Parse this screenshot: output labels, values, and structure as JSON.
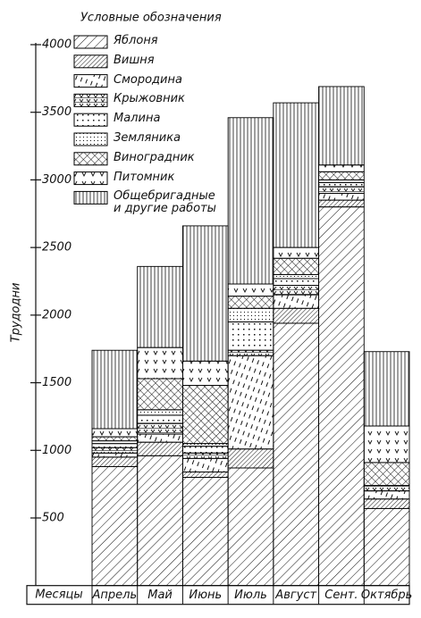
{
  "chart_data": {
    "type": "bar",
    "stacked": true,
    "legend_title": "Условные обозначения",
    "y_label": "Трудодни",
    "x_label": "Месяцы",
    "categories": [
      "Апрель",
      "Май",
      "Июнь",
      "Июль",
      "Август",
      "Сент.",
      "Октябрь"
    ],
    "ylim": [
      0,
      4000
    ],
    "yticks": [
      500,
      1000,
      1500,
      2000,
      2500,
      3000,
      3500,
      4000
    ],
    "series": [
      {
        "name": "Яблоня",
        "pattern": "hatch",
        "color": "#000000",
        "values": [
          880,
          960,
          800,
          870,
          1940,
          2800,
          570
        ]
      },
      {
        "name": "Вишня",
        "pattern": "hatch-dense",
        "color": "#000000",
        "values": [
          70,
          100,
          40,
          140,
          110,
          50,
          70
        ]
      },
      {
        "name": "Смородина",
        "pattern": "dashed",
        "color": "#000000",
        "values": [
          30,
          60,
          100,
          690,
          100,
          50,
          60
        ]
      },
      {
        "name": "Крыжовник",
        "pattern": "ticks-dense",
        "color": "#000000",
        "values": [
          40,
          80,
          40,
          40,
          70,
          50,
          40
        ]
      },
      {
        "name": "Малина",
        "pattern": "dots",
        "color": "#000000",
        "values": [
          30,
          60,
          50,
          210,
          50,
          30,
          0
        ]
      },
      {
        "name": "Земляника",
        "pattern": "dots-fine",
        "color": "#000000",
        "values": [
          20,
          40,
          20,
          100,
          30,
          20,
          0
        ]
      },
      {
        "name": "Виноградник",
        "pattern": "crosshatch",
        "color": "#000000",
        "values": [
          30,
          230,
          430,
          90,
          120,
          60,
          170
        ]
      },
      {
        "name": "Питомник",
        "pattern": "ticks",
        "color": "#000000",
        "values": [
          60,
          230,
          180,
          90,
          80,
          50,
          270
        ]
      },
      {
        "name": "Общебригадные\nи другие работы",
        "pattern": "vertical",
        "color": "#000000",
        "values": [
          580,
          600,
          1000,
          1230,
          1070,
          580,
          550
        ]
      }
    ]
  }
}
